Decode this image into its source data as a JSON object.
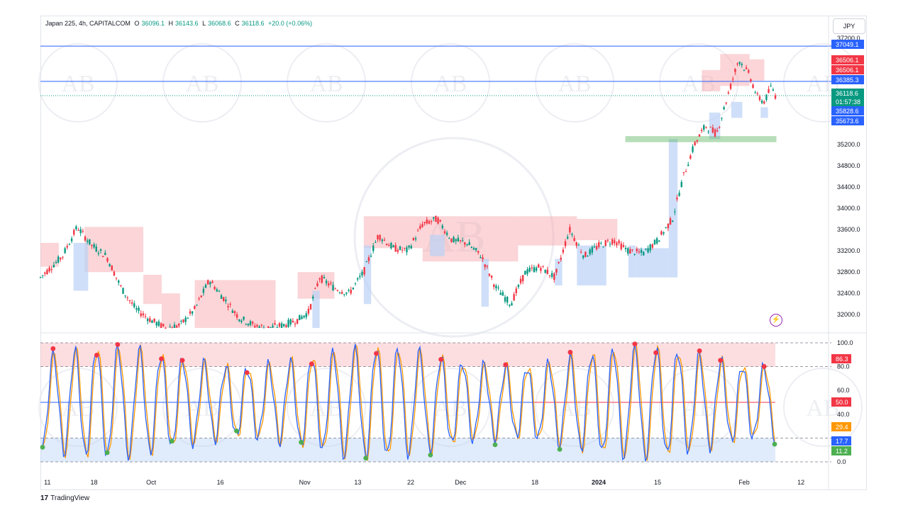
{
  "header": {
    "symbol": "Japan 225, 4h, CAPITALCOM",
    "open_label": "O",
    "open": "36096.1",
    "high_label": "H",
    "high": "36143.6",
    "low_label": "L",
    "low": "36068.6",
    "close_label": "C",
    "close": "36118.6",
    "change": "+20.0 (+0.06%)"
  },
  "currency_button": "JPY",
  "brand": "TradingView",
  "watermark": {
    "text": "AB"
  },
  "colors": {
    "up": "#089981",
    "down": "#f23645",
    "blue_line": "#2962ff",
    "supply_fill": "#f7a1a8",
    "demand_fill": "#bbd2f7",
    "stoch_k": "#2962ff",
    "stoch_d": "#ff9800",
    "green_zone": "#4caf50",
    "purple": "#9c27b0"
  },
  "chart_data": [
    {
      "type": "candlestick",
      "title": "Japan 225, 4h, CAPITALCOM",
      "ylim": [
        31750,
        37250
      ],
      "y_ticks": [
        "37200.0",
        "35200.0",
        "34800.0",
        "34400.0",
        "34000.0",
        "33600.0",
        "33200.0",
        "32800.0",
        "32400.0",
        "32000.0"
      ],
      "x_ticks": [
        "11",
        "18",
        "Oct",
        "16",
        "Nov",
        "13",
        "22",
        "Dec",
        "18",
        "2024",
        "15",
        "Feb",
        "12"
      ],
      "price_labels": [
        {
          "text": "37049.1",
          "value": 37049.1,
          "color": "#2962ff"
        },
        {
          "text": "36506.1",
          "value": 36506.1,
          "color": "#f23645"
        },
        {
          "text": "36506.1",
          "value": 36506.1,
          "color": "#f23645"
        },
        {
          "text": "36385.3",
          "value": 36385.3,
          "color": "#2962ff"
        },
        {
          "text": "36118.6",
          "value": 36118.6,
          "color": "#089981"
        },
        {
          "text": "01:57:38",
          "value": 36118.6,
          "color": "#089981"
        },
        {
          "text": "35828.6",
          "value": 35828.6,
          "color": "#2962ff"
        },
        {
          "text": "35673.6",
          "value": 35673.6,
          "color": "#2962ff"
        }
      ],
      "horizontal_lines": [
        37049.1,
        36385.3
      ],
      "green_zone": {
        "from_tick": "15",
        "to": "Feb",
        "low": 35250,
        "high": 35350
      },
      "trend_path": [
        [
          0,
          32700
        ],
        [
          0.03,
          33100
        ],
        [
          0.05,
          33650
        ],
        [
          0.07,
          33300
        ],
        [
          0.09,
          33100
        ],
        [
          0.11,
          32500
        ],
        [
          0.13,
          32100
        ],
        [
          0.15,
          31900
        ],
        [
          0.17,
          31750
        ],
        [
          0.19,
          31800
        ],
        [
          0.21,
          32100
        ],
        [
          0.23,
          32650
        ],
        [
          0.25,
          32300
        ],
        [
          0.27,
          31950
        ],
        [
          0.29,
          31800
        ],
        [
          0.31,
          31750
        ],
        [
          0.33,
          31800
        ],
        [
          0.35,
          31900
        ],
        [
          0.365,
          32050
        ],
        [
          0.38,
          32700
        ],
        [
          0.4,
          32500
        ],
        [
          0.42,
          32400
        ],
        [
          0.44,
          32800
        ],
        [
          0.46,
          33500
        ],
        [
          0.48,
          33250
        ],
        [
          0.5,
          33200
        ],
        [
          0.52,
          33700
        ],
        [
          0.54,
          33800
        ],
        [
          0.56,
          33400
        ],
        [
          0.58,
          33350
        ],
        [
          0.6,
          33100
        ],
        [
          0.62,
          32500
        ],
        [
          0.64,
          32200
        ],
        [
          0.66,
          32800
        ],
        [
          0.68,
          32900
        ],
        [
          0.7,
          32700
        ],
        [
          0.72,
          33600
        ],
        [
          0.74,
          33100
        ],
        [
          0.76,
          33300
        ],
        [
          0.78,
          33400
        ],
        [
          0.8,
          33200
        ],
        [
          0.82,
          33150
        ],
        [
          0.84,
          33400
        ],
        [
          0.86,
          33800
        ],
        [
          0.875,
          34600
        ],
        [
          0.89,
          35200
        ],
        [
          0.905,
          35550
        ],
        [
          0.92,
          35400
        ],
        [
          0.935,
          36100
        ],
        [
          0.95,
          36800
        ],
        [
          0.965,
          36500
        ],
        [
          0.975,
          36100
        ],
        [
          0.985,
          36000
        ],
        [
          0.995,
          36300
        ],
        [
          1.0,
          36118.6
        ]
      ]
    },
    {
      "type": "line",
      "title": "",
      "ylim": [
        0,
        100
      ],
      "y_ticks": [
        "100.0",
        "80.0",
        "60.0",
        "40.0",
        "0.0"
      ],
      "overbought": 80,
      "oversold": 20,
      "midline": 50,
      "price_labels": [
        {
          "text": "86.3",
          "value": 86.3,
          "color": "#f23645"
        },
        {
          "text": "50.0",
          "value": 50.0,
          "color": "#f23645"
        },
        {
          "text": "29.4",
          "value": 29.4,
          "color": "#ff9800"
        },
        {
          "text": "17.7",
          "value": 17.7,
          "color": "#2962ff"
        },
        {
          "text": "11.2",
          "value": 11.2,
          "color": "#4caf50"
        }
      ],
      "cycles": 34
    }
  ]
}
